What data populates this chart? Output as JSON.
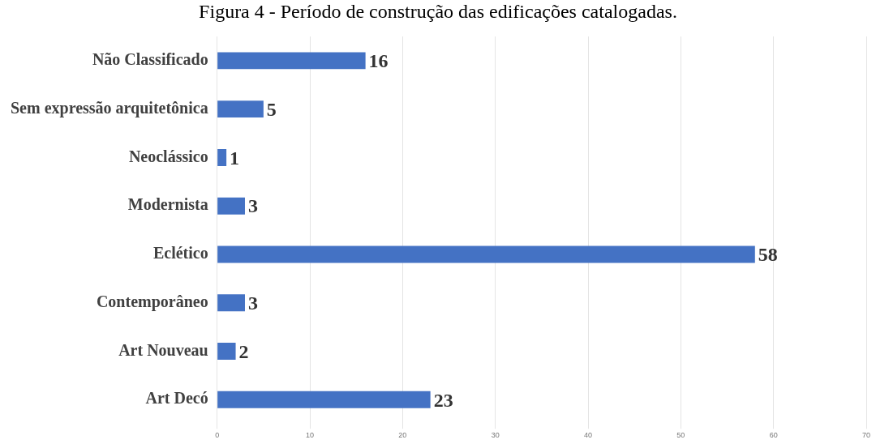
{
  "chart_data": {
    "type": "bar",
    "orientation": "horizontal",
    "title": "Figura 4 - Período de construção das edificações catalogadas.",
    "categories": [
      "Não Classificado",
      "Sem expressão arquitetônica",
      "Neoclássico",
      "Modernista",
      "Eclético",
      "Contemporâneo",
      "Art Nouveau",
      "Art Decó"
    ],
    "values": [
      16,
      5,
      1,
      3,
      58,
      3,
      2,
      23
    ],
    "color": "#4472c4",
    "data_labels": true,
    "xlim": [
      0,
      70
    ],
    "xticks": [
      0,
      10,
      20,
      30,
      40,
      50,
      60,
      70
    ],
    "grid": "x",
    "legend": false
  }
}
